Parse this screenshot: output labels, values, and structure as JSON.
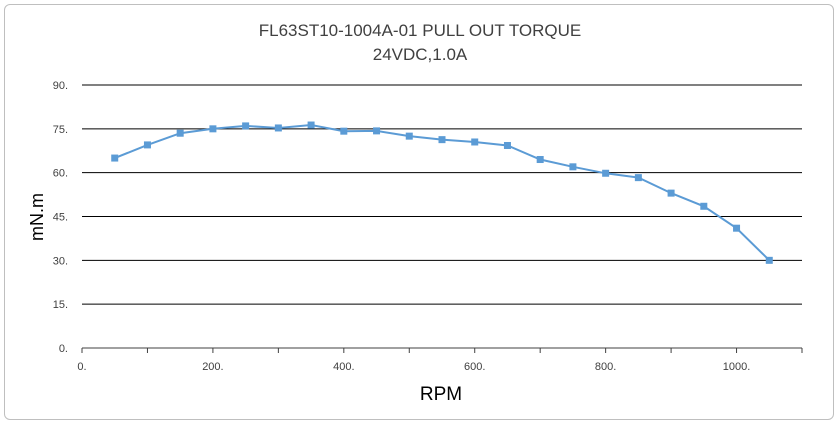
{
  "chart_data": {
    "type": "line",
    "title": "FL63ST10-1004A-01  PULL OUT TORQUE",
    "subtitle": "24VDC,1.0A",
    "xlabel": "RPM",
    "ylabel": "mN.m",
    "xlim": [
      0,
      1100
    ],
    "ylim": [
      0,
      90
    ],
    "x_tick_labels": [
      "0.",
      "200.",
      "400.",
      "600.",
      "800.",
      "1000."
    ],
    "x_ticks": [
      0,
      200,
      400,
      600,
      800,
      1000
    ],
    "y_tick_labels": [
      "0.",
      "15.",
      "30.",
      "45.",
      "60.",
      "75.",
      "90."
    ],
    "y_ticks": [
      0,
      15,
      30,
      45,
      60,
      75,
      90
    ],
    "grid": "horizontal",
    "color": "#5b9bd5",
    "series": [
      {
        "x": [
          50,
          100,
          150,
          200,
          250,
          300,
          350,
          400,
          450,
          500,
          550,
          600,
          650,
          700,
          750,
          800,
          850,
          900,
          950,
          1000,
          1050
        ],
        "values": [
          65.0,
          69.5,
          73.5,
          75.0,
          76.0,
          75.3,
          76.3,
          74.2,
          74.3,
          72.5,
          71.3,
          70.5,
          69.3,
          64.5,
          62.0,
          59.8,
          58.3,
          53.0,
          48.5,
          41.0,
          30.0
        ]
      }
    ]
  }
}
